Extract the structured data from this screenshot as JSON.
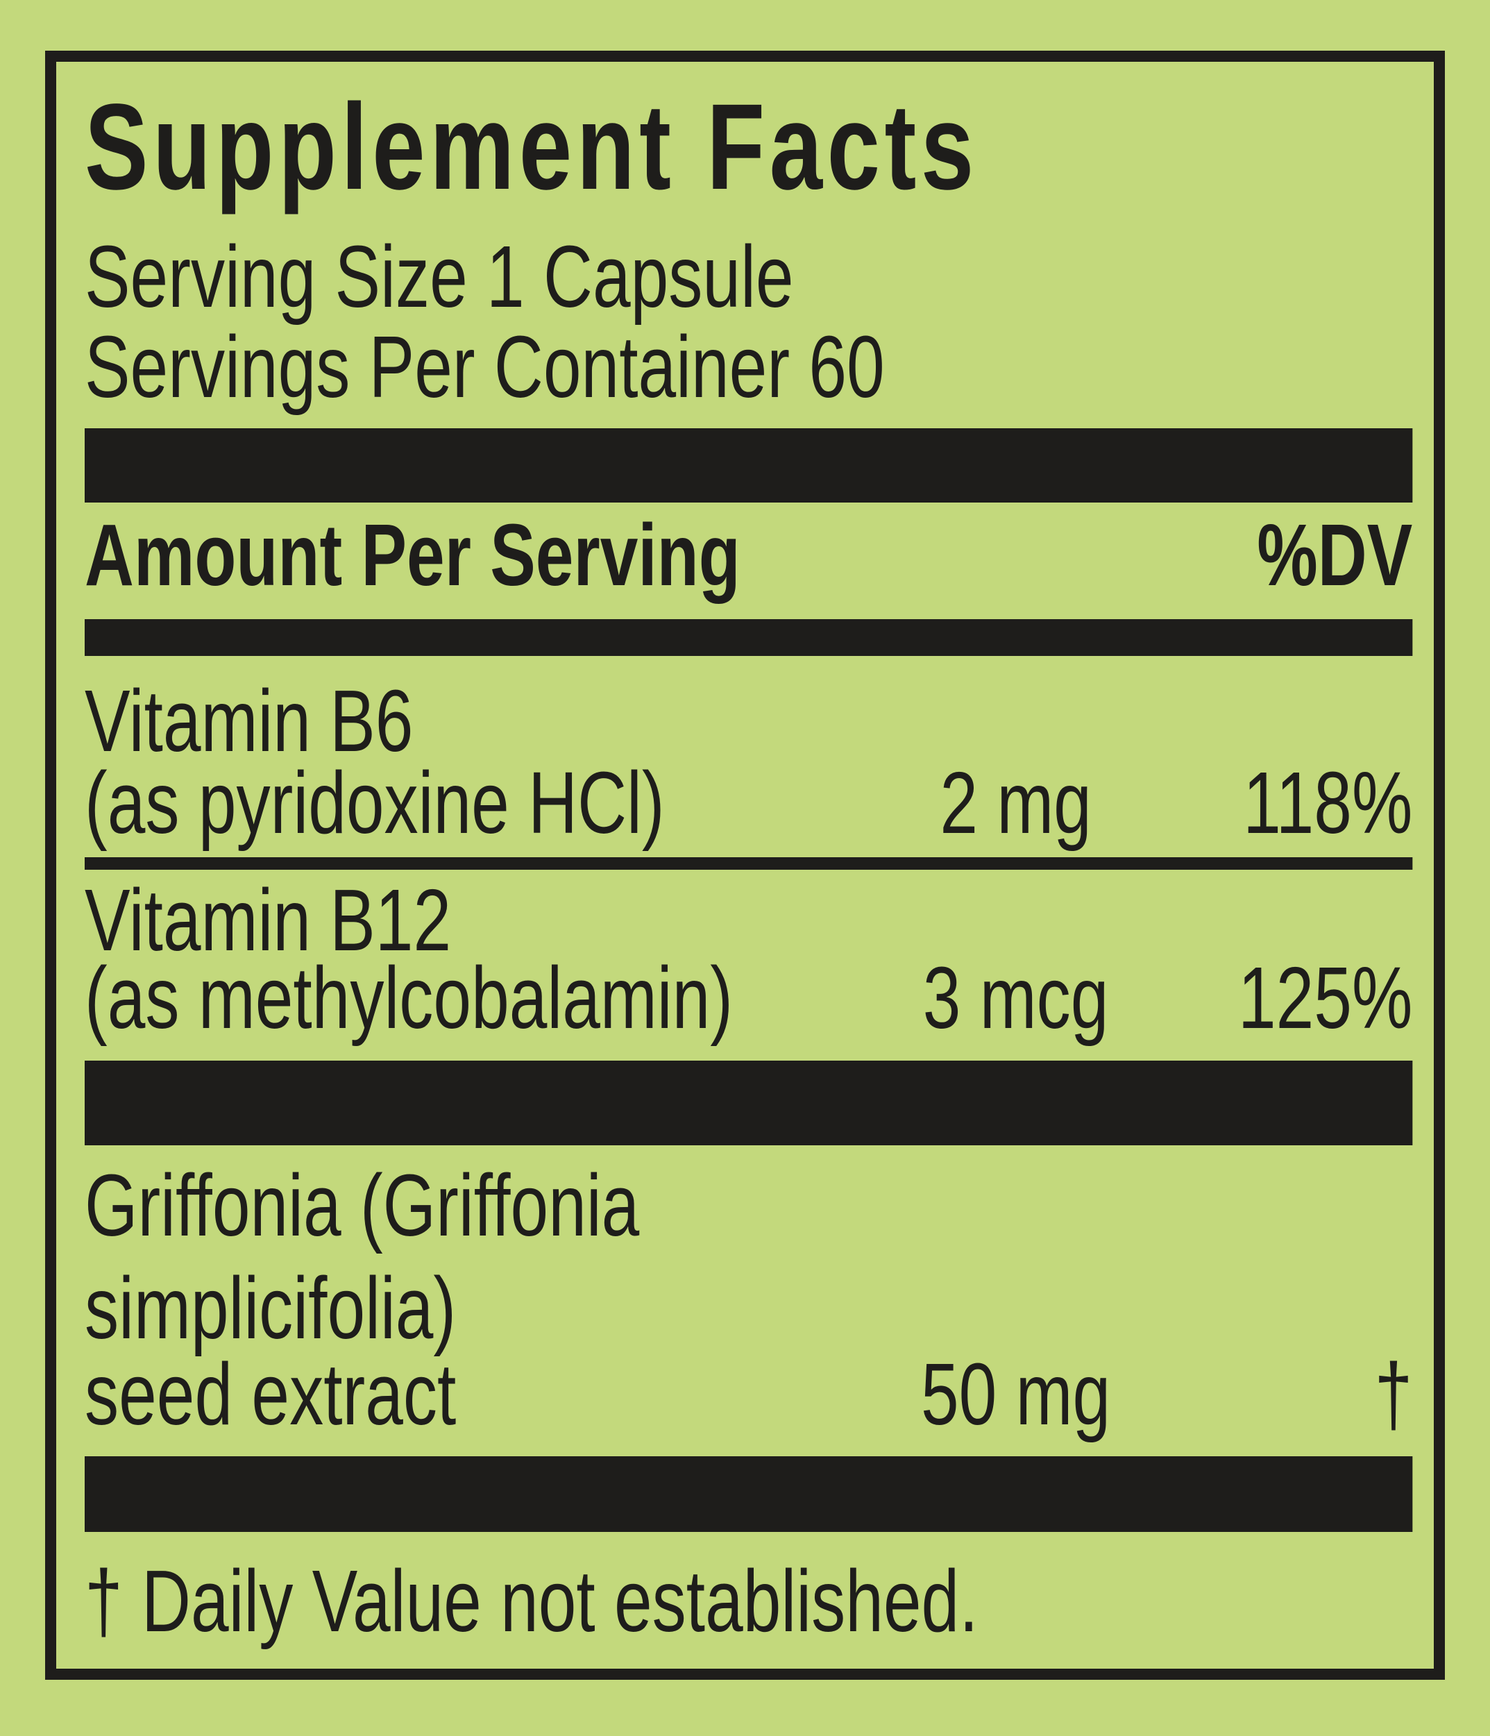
{
  "colors": {
    "background": "#c3d97c",
    "ink": "#1e1d1b"
  },
  "panel": {
    "title": "Supplement Facts",
    "serving_size": "Serving Size 1 Capsule",
    "servings_per_container": "Servings Per Container 60",
    "column_headers": {
      "amount": "Amount Per Serving",
      "daily_value": "%DV"
    },
    "rows": [
      {
        "name": "Vitamin B6",
        "form": "(as pyridoxine HCl)",
        "amount": "2 mg",
        "daily_value": "118%"
      },
      {
        "name": "Vitamin B12",
        "form": "(as methylcobalamin)",
        "amount": "3 mcg",
        "daily_value": "125%"
      },
      {
        "name_line1": "Griffonia (Griffonia",
        "name_line2": "simplicifolia)",
        "name_line3": "seed extract",
        "amount": "50 mg",
        "daily_value": "†"
      }
    ],
    "footnote": "† Daily Value not established."
  }
}
